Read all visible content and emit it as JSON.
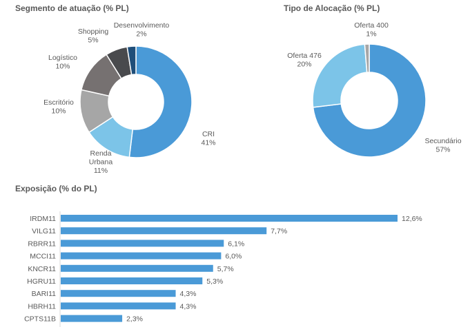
{
  "titles": {
    "segment": "Segmento de atuação (% PL)",
    "allocation": "Tipo de Alocação (% PL)",
    "exposure": "Exposição (% do PL)"
  },
  "chart_data": [
    {
      "type": "pie",
      "title": "Segmento de atuação (% PL)",
      "donut": true,
      "slices": [
        {
          "name": "CRI",
          "value": 41,
          "label": "41%",
          "color": "#4a9ad7"
        },
        {
          "name": "Renda Urbana",
          "value": 11,
          "label": "11%",
          "color": "#7cc4e8"
        },
        {
          "name": "Escritório",
          "value": 10,
          "label": "10%",
          "color": "#a6a6a6"
        },
        {
          "name": "Logístico",
          "value": 10,
          "label": "10%",
          "color": "#767171"
        },
        {
          "name": "Shopping",
          "value": 5,
          "label": "5%",
          "color": "#494a4d"
        },
        {
          "name": "Desenvolvimento",
          "value": 2,
          "label": "2%",
          "color": "#1f4e79"
        }
      ]
    },
    {
      "type": "pie",
      "title": "Tipo de Alocação (% PL)",
      "donut": true,
      "slices": [
        {
          "name": "Secundário",
          "value": 57,
          "label": "57%",
          "color": "#4a9ad7"
        },
        {
          "name": "Oferta 476",
          "value": 20,
          "label": "20%",
          "color": "#7cc4e8"
        },
        {
          "name": "Oferta 400",
          "value": 1,
          "label": "1%",
          "color": "#a6a6a6"
        }
      ]
    },
    {
      "type": "bar",
      "orientation": "horizontal",
      "title": "Exposição (% do PL)",
      "categories": [
        "IRDM11",
        "VILG11",
        "RBRR11",
        "MCCI11",
        "KNCR11",
        "HGRU11",
        "BARI11",
        "HBRH11",
        "CPTS11B"
      ],
      "values": [
        12.6,
        7.7,
        6.1,
        6.0,
        5.7,
        5.3,
        4.3,
        4.3,
        2.3
      ],
      "value_labels": [
        "12,6%",
        "7,7%",
        "6,1%",
        "6,0%",
        "5,7%",
        "5,3%",
        "4,3%",
        "4,3%",
        "2,3%"
      ],
      "color": "#4a9ad7"
    }
  ]
}
